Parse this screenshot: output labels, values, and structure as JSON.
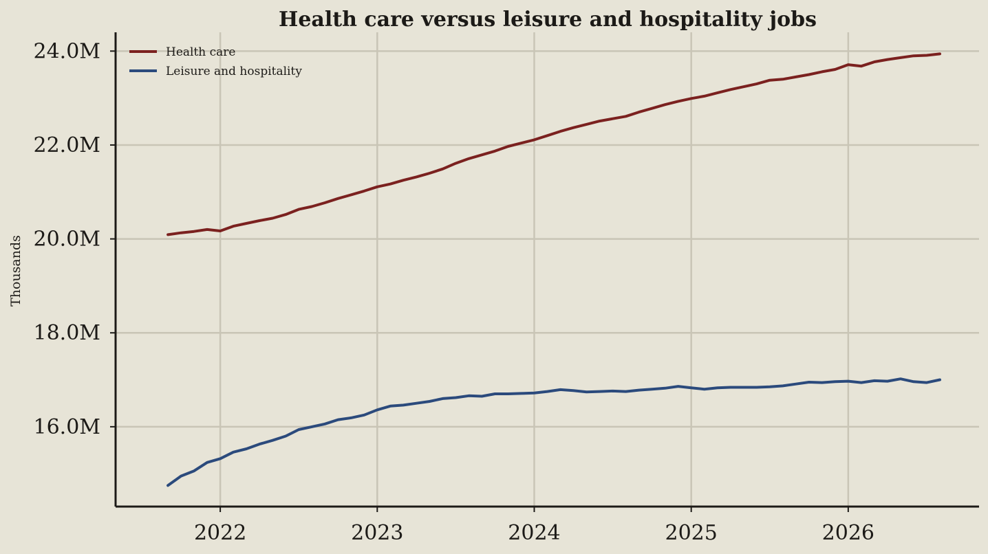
{
  "chart_data": {
    "type": "line",
    "title": "Health care versus leisure and hospitality jobs",
    "xlabel": "",
    "ylabel": "Thousands",
    "x_ticks": [
      {
        "value": 2022,
        "label": "2022"
      },
      {
        "value": 2023,
        "label": "2023"
      },
      {
        "value": 2024,
        "label": "2024"
      },
      {
        "value": 2025,
        "label": "2025"
      },
      {
        "value": 2026,
        "label": "2026"
      }
    ],
    "y_ticks": [
      {
        "value": 16000,
        "label": "16.0M"
      },
      {
        "value": 18000,
        "label": "18.0M"
      },
      {
        "value": 20000,
        "label": "20.0M"
      },
      {
        "value": 22000,
        "label": "22.0M"
      },
      {
        "value": 24000,
        "label": "24.0M"
      }
    ],
    "xlim": [
      "2021-05",
      "2026-11"
    ],
    "ylim": [
      14300,
      24400
    ],
    "grid": true,
    "legend_position": "top-left",
    "x": [
      "2021-09",
      "2021-10",
      "2021-11",
      "2021-12",
      "2022-01",
      "2022-02",
      "2022-03",
      "2022-04",
      "2022-05",
      "2022-06",
      "2022-07",
      "2022-08",
      "2022-09",
      "2022-10",
      "2022-11",
      "2022-12",
      "2023-01",
      "2023-02",
      "2023-03",
      "2023-04",
      "2023-05",
      "2023-06",
      "2023-07",
      "2023-08",
      "2023-09",
      "2023-10",
      "2023-11",
      "2023-12",
      "2024-01",
      "2024-02",
      "2024-03",
      "2024-04",
      "2024-05",
      "2024-06",
      "2024-07",
      "2024-08",
      "2024-09",
      "2024-10",
      "2024-11",
      "2024-12",
      "2025-01",
      "2025-02",
      "2025-03",
      "2025-04",
      "2025-05",
      "2025-06",
      "2025-07",
      "2025-08",
      "2025-09",
      "2025-10",
      "2025-11",
      "2025-12",
      "2026-01",
      "2026-02",
      "2026-03",
      "2026-04",
      "2026-05",
      "2026-06",
      "2026-07",
      "2026-08"
    ],
    "series": [
      {
        "name": "Health care",
        "color": "#7b211f",
        "values": [
          20090,
          20130,
          20160,
          20200,
          20170,
          20270,
          20330,
          20390,
          20440,
          20520,
          20630,
          20690,
          20770,
          20860,
          20940,
          21020,
          21110,
          21170,
          21250,
          21320,
          21400,
          21490,
          21610,
          21710,
          21790,
          21870,
          21970,
          22040,
          22110,
          22200,
          22290,
          22370,
          22440,
          22510,
          22560,
          22610,
          22700,
          22780,
          22860,
          22930,
          22990,
          23040,
          23110,
          23180,
          23240,
          23300,
          23380,
          23400,
          23450,
          23500,
          23560,
          23610,
          23710,
          23680,
          23770,
          23820,
          23860,
          23900,
          23910,
          23940
        ]
      },
      {
        "name": "Leisure and hospitality",
        "color": "#2b4a7c",
        "values": [
          14750,
          14950,
          15060,
          15240,
          15320,
          15460,
          15530,
          15630,
          15710,
          15800,
          15940,
          16000,
          16060,
          16150,
          16190,
          16250,
          16360,
          16440,
          16460,
          16500,
          16540,
          16600,
          16620,
          16660,
          16650,
          16700,
          16700,
          16710,
          16720,
          16750,
          16790,
          16770,
          16740,
          16750,
          16760,
          16750,
          16780,
          16800,
          16820,
          16860,
          16830,
          16800,
          16830,
          16840,
          16840,
          16840,
          16850,
          16870,
          16910,
          16950,
          16940,
          16960,
          16970,
          16940,
          16980,
          16970,
          17020,
          16960,
          16940,
          17000
        ]
      }
    ]
  }
}
